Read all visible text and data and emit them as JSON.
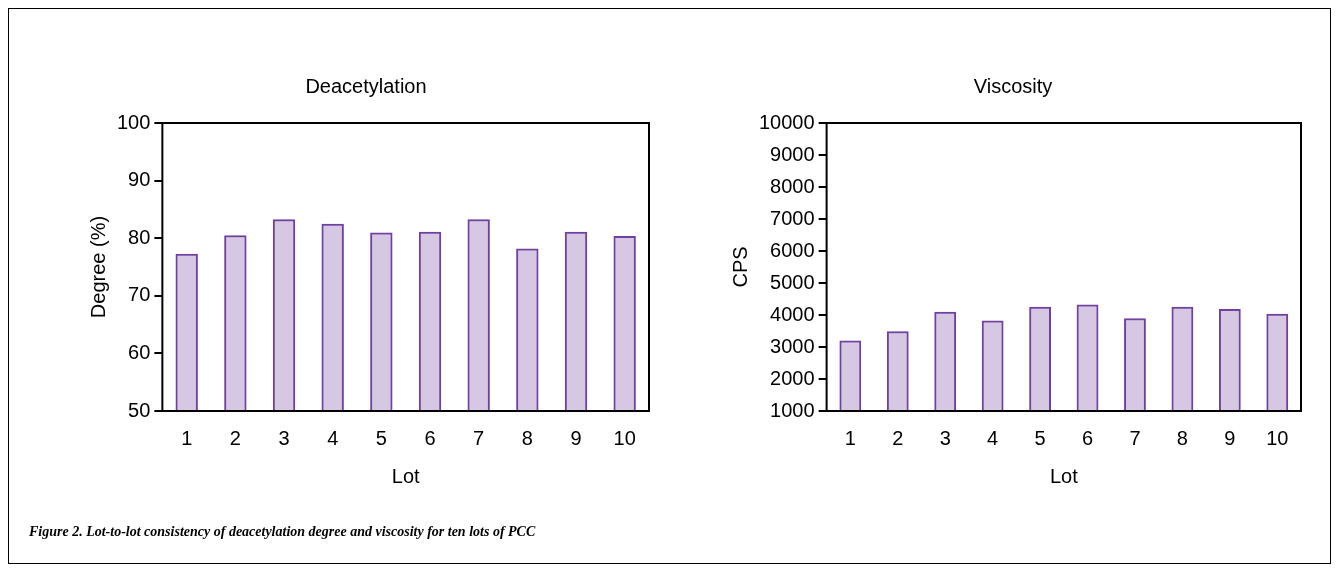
{
  "chart_data": [
    {
      "type": "bar",
      "title": "Deacetylation",
      "xlabel": "Lot",
      "ylabel": "Degree (%)",
      "categories": [
        "1",
        "2",
        "3",
        "4",
        "5",
        "6",
        "7",
        "8",
        "9",
        "10"
      ],
      "values": [
        77.3,
        80.5,
        83.3,
        82.5,
        81.0,
        81.1,
        83.3,
        78.2,
        81.1,
        80.4
      ],
      "color": "#7040a0",
      "ylim": [
        50,
        100
      ],
      "yticks": [
        50,
        60,
        70,
        80,
        90,
        100
      ],
      "grid": false,
      "annotations": [
        "Figure 2. Lot-to-lot consistency of deacetylation degree and viscosity for ten lots of  PCC"
      ]
    },
    {
      "type": "bar",
      "title": "Viscosity",
      "xlabel": "Lot",
      "ylabel": "CPS",
      "categories": [
        "1",
        "2",
        "3",
        "4",
        "5",
        "6",
        "7",
        "8",
        "9",
        "10"
      ],
      "values": [
        3200,
        3490,
        4100,
        3830,
        4260,
        4330,
        3900,
        4260,
        4190,
        4040
      ],
      "color": "#7040a0",
      "ylim": [
        1000,
        10000
      ],
      "yticks": [
        1000,
        2000,
        3000,
        4000,
        5000,
        6000,
        7000,
        8000,
        9000,
        10000
      ],
      "grid": false
    }
  ]
}
